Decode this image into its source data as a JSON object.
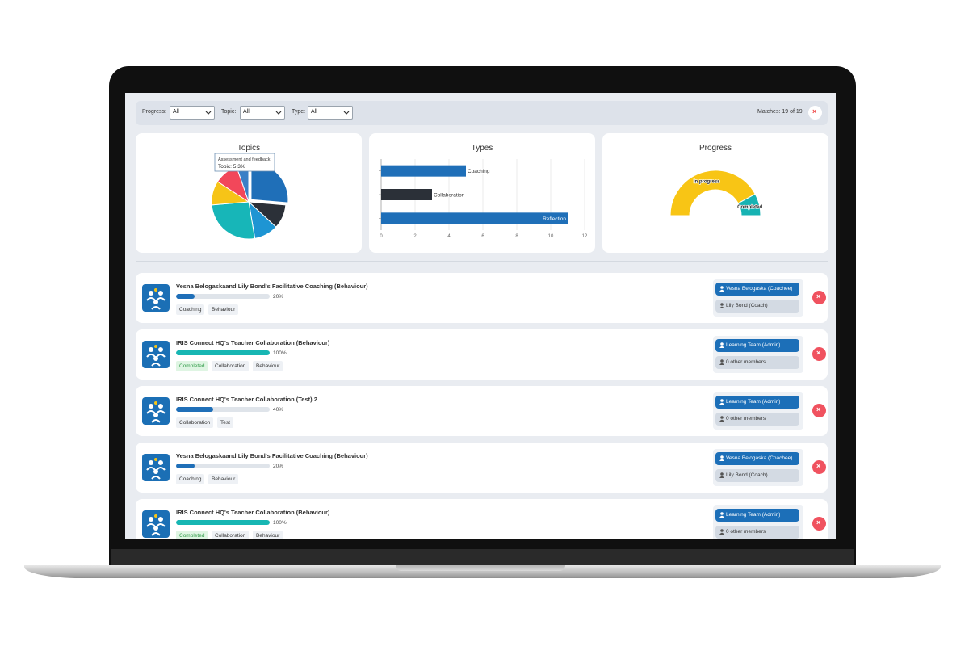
{
  "filters": [
    {
      "label": "Progress:",
      "value": "All"
    },
    {
      "label": "Topic:",
      "value": "All"
    },
    {
      "label": "Type:",
      "value": "All"
    }
  ],
  "matches": "Matches: 19 of 19",
  "chart_data": [
    {
      "type": "pie",
      "title": "Topics",
      "categories": [
        null,
        null,
        null,
        null,
        null,
        null,
        "Assessment and feedback"
      ],
      "values": [
        26.3,
        10.5,
        10.5,
        26.3,
        10.5,
        10.5,
        5.3
      ],
      "colors": [
        "#1f6fb8",
        "#2b3038",
        "#1e95d3",
        "#17b6b8",
        "#f6c417",
        "#f2475a",
        "#3b7fc6"
      ],
      "tooltip": {
        "title": "Assessment and feedback",
        "label": "Topic: 5.3%"
      }
    },
    {
      "type": "hbar",
      "title": "Types",
      "categories": [
        "Coaching",
        "Collaboration",
        "Reflection"
      ],
      "values": [
        5,
        3,
        11
      ],
      "colors": [
        "#1f6fb8",
        "#2b3038",
        "#1f6fb8"
      ],
      "xlim": [
        0,
        12
      ],
      "xticks": [
        0,
        2,
        4,
        6,
        8,
        10,
        12
      ],
      "grid": true
    },
    {
      "type": "half-doughnut",
      "title": "Progress",
      "categories": [
        "In progress",
        "Completed"
      ],
      "values": [
        16,
        3
      ],
      "colors": [
        "#f8c515",
        "#17b3b3"
      ]
    }
  ],
  "items": [
    {
      "title": "Vesna Belogaskaand Lily Bond's Facilitative Coaching (Behaviour)",
      "progress": 20,
      "progress_label": "20%",
      "color": "#1f6fb8",
      "tags": [
        "Coaching",
        "Behaviour"
      ],
      "members": [
        "Vesna Belogaska (Coachee)",
        "Lily Bond (Coach)"
      ]
    },
    {
      "title": "IRIS Connect HQ's Teacher Collaboration (Behaviour)",
      "progress": 100,
      "progress_label": "100%",
      "color": "#17b6b3",
      "status": "Completed",
      "tags": [
        "Collaboration",
        "Behaviour"
      ],
      "members": [
        "Learning Team (Admin)",
        "0 other members"
      ]
    },
    {
      "title": "IRIS Connect HQ's Teacher Collaboration (Test) 2",
      "progress": 40,
      "progress_label": "40%",
      "color": "#1f6fb8",
      "tags": [
        "Collaboration",
        "Test"
      ],
      "members": [
        "Learning Team (Admin)",
        "0 other members"
      ]
    },
    {
      "title": "Vesna Belogaskaand Lily Bond's Facilitative Coaching (Behaviour)",
      "progress": 20,
      "progress_label": "20%",
      "color": "#1f6fb8",
      "tags": [
        "Coaching",
        "Behaviour"
      ],
      "members": [
        "Vesna Belogaska (Coachee)",
        "Lily Bond (Coach)"
      ]
    },
    {
      "title": "IRIS Connect HQ's Teacher Collaboration (Behaviour)",
      "progress": 100,
      "progress_label": "100%",
      "color": "#17b6b3",
      "status": "Completed",
      "tags": [
        "Collaboration",
        "Behaviour"
      ],
      "members": [
        "Learning Team (Admin)",
        "0 other members"
      ]
    }
  ]
}
